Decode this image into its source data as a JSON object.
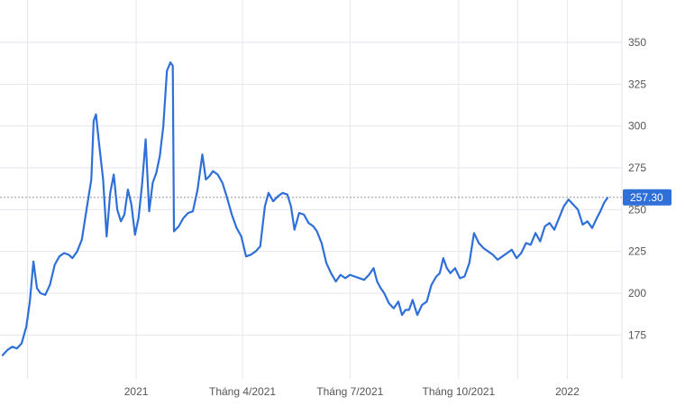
{
  "chart_data": {
    "type": "line",
    "title": "",
    "xlabel": "",
    "ylabel": "",
    "ylim": [
      150,
      362
    ],
    "y_ticks": [
      175,
      200,
      225,
      250,
      275,
      300,
      325,
      350
    ],
    "x_ticks": [
      {
        "label": "2021",
        "x": "2021-01-01"
      },
      {
        "label": "Tháng 4/2021",
        "x": "2021-04-01"
      },
      {
        "label": "Tháng 7/2021",
        "x": "2021-07-01"
      },
      {
        "label": "Tháng 10/2021",
        "x": "2021-10-01"
      },
      {
        "label": "2022",
        "x": "2022-01-01"
      }
    ],
    "last_value": 257.3,
    "last_value_label": "257.30",
    "grid": true,
    "line_color": "#2f6fd8",
    "series": [
      {
        "points": [
          [
            "2020-09-10",
            163
          ],
          [
            "2020-09-14",
            166
          ],
          [
            "2020-09-18",
            168
          ],
          [
            "2020-09-22",
            167
          ],
          [
            "2020-09-26",
            170
          ],
          [
            "2020-09-30",
            180
          ],
          [
            "2020-10-03",
            195
          ],
          [
            "2020-10-06",
            219
          ],
          [
            "2020-10-09",
            203
          ],
          [
            "2020-10-12",
            200
          ],
          [
            "2020-10-16",
            199
          ],
          [
            "2020-10-20",
            205
          ],
          [
            "2020-10-24",
            217
          ],
          [
            "2020-10-28",
            222
          ],
          [
            "2020-11-01",
            224
          ],
          [
            "2020-11-05",
            223
          ],
          [
            "2020-11-08",
            221
          ],
          [
            "2020-11-12",
            225
          ],
          [
            "2020-11-16",
            232
          ],
          [
            "2020-11-20",
            250
          ],
          [
            "2020-11-24",
            268
          ],
          [
            "2020-11-26",
            303
          ],
          [
            "2020-11-28",
            307
          ],
          [
            "2020-11-30",
            293
          ],
          [
            "2020-12-04",
            268
          ],
          [
            "2020-12-07",
            234
          ],
          [
            "2020-12-10",
            260
          ],
          [
            "2020-12-13",
            271
          ],
          [
            "2020-12-16",
            250
          ],
          [
            "2020-12-19",
            243
          ],
          [
            "2020-12-22",
            247
          ],
          [
            "2020-12-25",
            262
          ],
          [
            "2020-12-28",
            253
          ],
          [
            "2020-12-31",
            235
          ],
          [
            "2021-01-03",
            245
          ],
          [
            "2021-01-06",
            265
          ],
          [
            "2021-01-09",
            292
          ],
          [
            "2021-01-12",
            249
          ],
          [
            "2021-01-15",
            266
          ],
          [
            "2021-01-18",
            272
          ],
          [
            "2021-01-21",
            282
          ],
          [
            "2021-01-24",
            300
          ],
          [
            "2021-01-27",
            333
          ],
          [
            "2021-01-30",
            338
          ],
          [
            "2021-02-01",
            336
          ],
          [
            "2021-02-02",
            237
          ],
          [
            "2021-02-06",
            240
          ],
          [
            "2021-02-10",
            245
          ],
          [
            "2021-02-14",
            248
          ],
          [
            "2021-02-18",
            249
          ],
          [
            "2021-02-22",
            262
          ],
          [
            "2021-02-26",
            283
          ],
          [
            "2021-03-01",
            268
          ],
          [
            "2021-03-04",
            270
          ],
          [
            "2021-03-07",
            273
          ],
          [
            "2021-03-11",
            271
          ],
          [
            "2021-03-15",
            266
          ],
          [
            "2021-03-19",
            257
          ],
          [
            "2021-03-23",
            247
          ],
          [
            "2021-03-27",
            239
          ],
          [
            "2021-03-31",
            234
          ],
          [
            "2021-04-04",
            222
          ],
          [
            "2021-04-08",
            223
          ],
          [
            "2021-04-12",
            225
          ],
          [
            "2021-04-16",
            228
          ],
          [
            "2021-04-20",
            252
          ],
          [
            "2021-04-23",
            260
          ],
          [
            "2021-04-27",
            255
          ],
          [
            "2021-05-01",
            258
          ],
          [
            "2021-05-05",
            260
          ],
          [
            "2021-05-09",
            259
          ],
          [
            "2021-05-12",
            252
          ],
          [
            "2021-05-15",
            238
          ],
          [
            "2021-05-19",
            248
          ],
          [
            "2021-05-23",
            247
          ],
          [
            "2021-05-27",
            242
          ],
          [
            "2021-05-31",
            240
          ],
          [
            "2021-06-03",
            237
          ],
          [
            "2021-06-07",
            230
          ],
          [
            "2021-06-11",
            218
          ],
          [
            "2021-06-15",
            212
          ],
          [
            "2021-06-19",
            207
          ],
          [
            "2021-06-23",
            211
          ],
          [
            "2021-06-27",
            209
          ],
          [
            "2021-07-01",
            211
          ],
          [
            "2021-07-05",
            210
          ],
          [
            "2021-07-09",
            209
          ],
          [
            "2021-07-13",
            208
          ],
          [
            "2021-07-17",
            211
          ],
          [
            "2021-07-21",
            215
          ],
          [
            "2021-07-24",
            207
          ],
          [
            "2021-07-27",
            203
          ],
          [
            "2021-07-30",
            200
          ],
          [
            "2021-08-03",
            194
          ],
          [
            "2021-08-07",
            191
          ],
          [
            "2021-08-11",
            195
          ],
          [
            "2021-08-14",
            187
          ],
          [
            "2021-08-17",
            190
          ],
          [
            "2021-08-20",
            190
          ],
          [
            "2021-08-23",
            196
          ],
          [
            "2021-08-27",
            187
          ],
          [
            "2021-08-31",
            193
          ],
          [
            "2021-09-04",
            195
          ],
          [
            "2021-09-08",
            205
          ],
          [
            "2021-09-12",
            210
          ],
          [
            "2021-09-15",
            212
          ],
          [
            "2021-09-18",
            221
          ],
          [
            "2021-09-21",
            215
          ],
          [
            "2021-09-24",
            212
          ],
          [
            "2021-09-28",
            215
          ],
          [
            "2021-10-02",
            209
          ],
          [
            "2021-10-06",
            210
          ],
          [
            "2021-10-10",
            218
          ],
          [
            "2021-10-14",
            236
          ],
          [
            "2021-10-18",
            230
          ],
          [
            "2021-10-22",
            227
          ],
          [
            "2021-10-26",
            225
          ],
          [
            "2021-10-30",
            223
          ],
          [
            "2021-11-03",
            220
          ],
          [
            "2021-11-07",
            222
          ],
          [
            "2021-11-11",
            224
          ],
          [
            "2021-11-15",
            226
          ],
          [
            "2021-11-19",
            221
          ],
          [
            "2021-11-23",
            224
          ],
          [
            "2021-11-27",
            230
          ],
          [
            "2021-12-01",
            229
          ],
          [
            "2021-12-05",
            236
          ],
          [
            "2021-12-09",
            231
          ],
          [
            "2021-12-13",
            240
          ],
          [
            "2021-12-17",
            242
          ],
          [
            "2021-12-21",
            238
          ],
          [
            "2021-12-25",
            245
          ],
          [
            "2021-12-29",
            252
          ],
          [
            "2022-01-02",
            256
          ],
          [
            "2022-01-06",
            253
          ],
          [
            "2022-01-10",
            250
          ],
          [
            "2022-01-14",
            241
          ],
          [
            "2022-01-18",
            243
          ],
          [
            "2022-01-22",
            239
          ],
          [
            "2022-01-26",
            245
          ],
          [
            "2022-01-29",
            249
          ],
          [
            "2022-02-01",
            254
          ],
          [
            "2022-02-04",
            257
          ]
        ]
      }
    ]
  }
}
